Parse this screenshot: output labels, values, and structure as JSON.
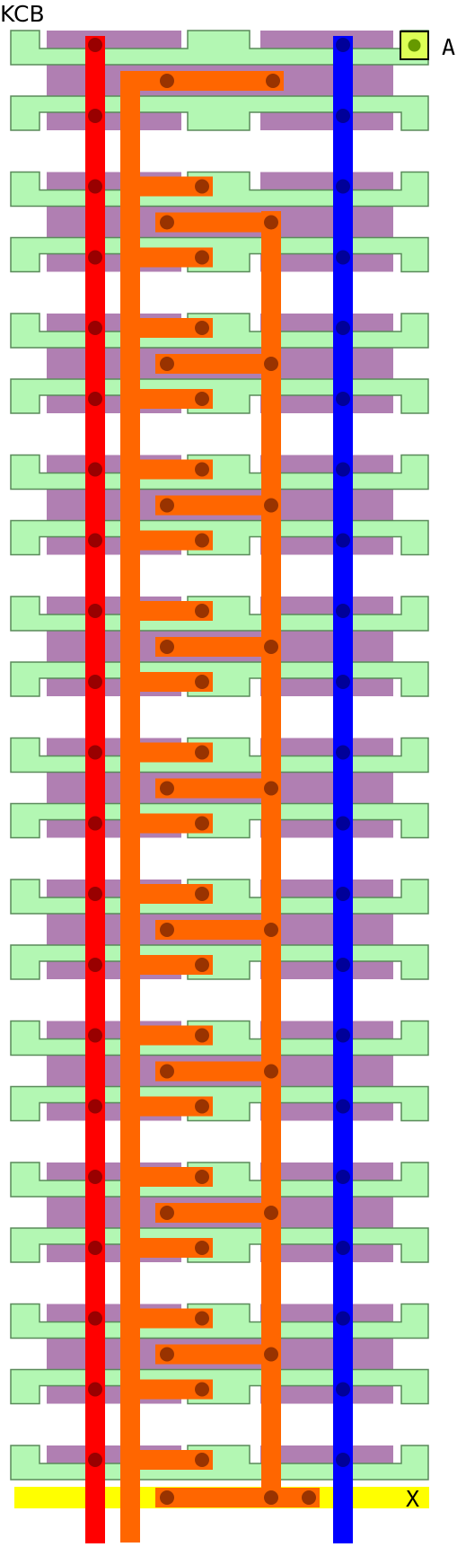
{
  "diagram": {
    "title": "KCB",
    "pin_a_label": "A",
    "pin_x_label": "X",
    "colors": {
      "background": "#ffffff",
      "diffusion_fill": "#b3f7b3",
      "diffusion_stroke": "#5a8a5a",
      "poly_fill": "#b07fb2",
      "metal_left": "#ff0000",
      "metal_right": "#0000ff",
      "metal_mid": "#ff6600",
      "x_bar": "#ffff00",
      "pin_a_fill": "#ddff55",
      "contact_on_red": "#990000",
      "contact_on_blue": "#000099",
      "contact_on_orange": "#993300",
      "contact_on_pin": "#669900"
    }
  }
}
